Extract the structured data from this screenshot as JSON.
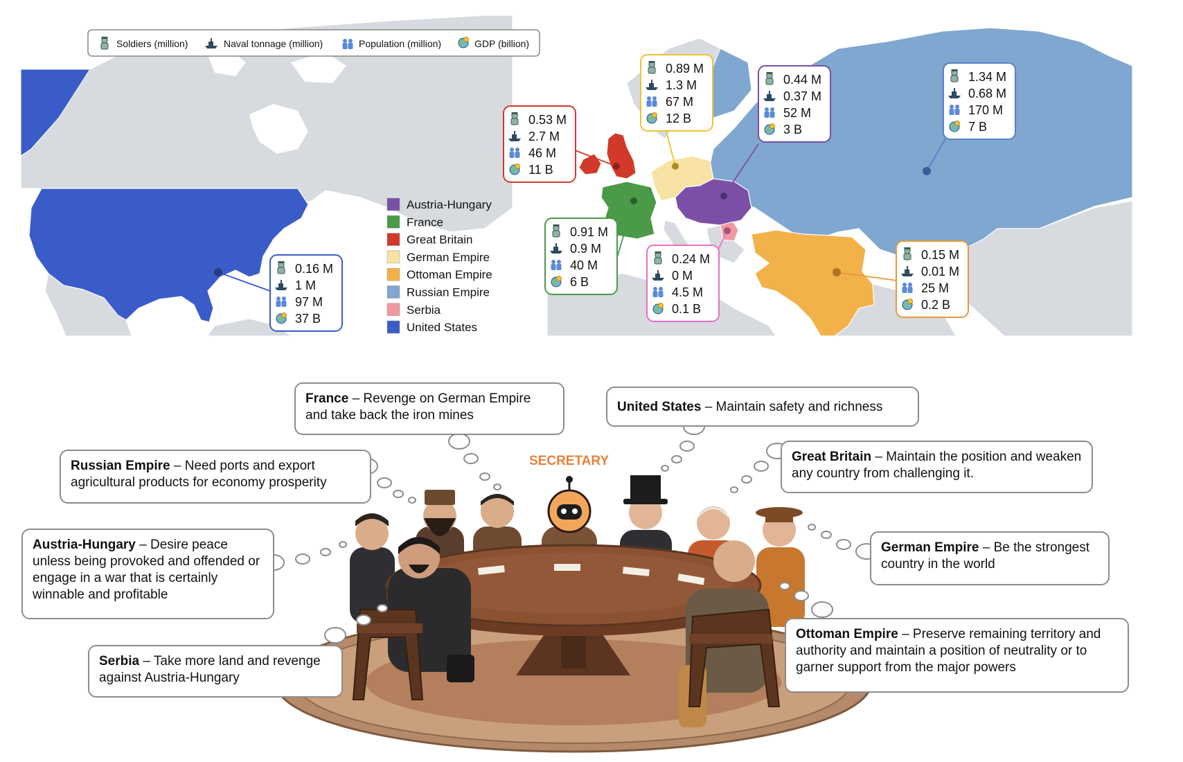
{
  "top_legend": {
    "items": [
      {
        "icon": "soldier-icon",
        "label": "Soldiers (million)"
      },
      {
        "icon": "ship-icon",
        "label": "Naval tonnage (million)"
      },
      {
        "icon": "population-icon",
        "label": "Population (million)"
      },
      {
        "icon": "gdp-icon",
        "label": "GDP (billion)"
      }
    ]
  },
  "country_legend": [
    {
      "name": "Austria-Hungary",
      "color": "#7b4fa6"
    },
    {
      "name": "France",
      "color": "#4a9a48"
    },
    {
      "name": "Great Britain",
      "color": "#d1392b"
    },
    {
      "name": "German Empire",
      "color": "#f8e3a4"
    },
    {
      "name": "Ottoman Empire",
      "color": "#f3b14a"
    },
    {
      "name": "Russian Empire",
      "color": "#7fa7cf"
    },
    {
      "name": "Serbia",
      "color": "#ee9aa0"
    },
    {
      "name": "United States",
      "color": "#3a5cc9"
    }
  ],
  "stats": {
    "united_states": {
      "soldiers": "0.16 M",
      "naval": "1 M",
      "population": "97 M",
      "gdp": "37 B",
      "border": "#3a5cc9"
    },
    "great_britain": {
      "soldiers": "0.53 M",
      "naval": "2.7 M",
      "population": "46 M",
      "gdp": "11 B",
      "border": "#d1392b"
    },
    "german_empire": {
      "soldiers": "0.89 M",
      "naval": "1.3 M",
      "population": "67 M",
      "gdp": "12 B",
      "border": "#f1c232"
    },
    "austria_hungary": {
      "soldiers": "0.44 M",
      "naval": "0.37 M",
      "population": "52 M",
      "gdp": "3 B",
      "border": "#7b4fa6"
    },
    "russian_empire": {
      "soldiers": "1.34 M",
      "naval": "0.68 M",
      "population": "170 M",
      "gdp": "7 B",
      "border": "#5b7fc7"
    },
    "france": {
      "soldiers": "0.91 M",
      "naval": "0.9 M",
      "population": "40 M",
      "gdp": "6 B",
      "border": "#4a9a48"
    },
    "serbia": {
      "soldiers": "0.24 M",
      "naval": "0 M",
      "population": "4.5 M",
      "gdp": "0.1 B",
      "border": "#e86fc4"
    },
    "ottoman_empire": {
      "soldiers": "0.15 M",
      "naval": "0.01 M",
      "population": "25 M",
      "gdp": "0.2 B",
      "border": "#e89a3a"
    }
  },
  "secretary_label": "SECRETARY",
  "speech": {
    "france": {
      "name": "France",
      "text": " – Revenge on German Empire and take back the iron mines"
    },
    "united_states": {
      "name": "United States",
      "text": " – Maintain safety and richness"
    },
    "russian_empire": {
      "name": "Russian Empire",
      "text": " – Need ports and export agricultural products for economy prosperity"
    },
    "great_britain": {
      "name": "Great Britain",
      "text": " – Maintain the position and weaken any country from challenging it."
    },
    "austria_hungary": {
      "name": "Austria-Hungary",
      "text": " – Desire peace unless being provoked and offended or engage in a war that is certainly winnable and profitable"
    },
    "german_empire": {
      "name": "German Empire",
      "text": " – Be the strongest country in the world"
    },
    "serbia": {
      "name": "Serbia",
      "text": " – Take more land and revenge against Austria-Hungary"
    },
    "ottoman_empire": {
      "name": "Ottoman Empire",
      "text": " – Preserve remaining territory and authority  and maintain a position of neutrality or to garner support from the major powers"
    }
  }
}
